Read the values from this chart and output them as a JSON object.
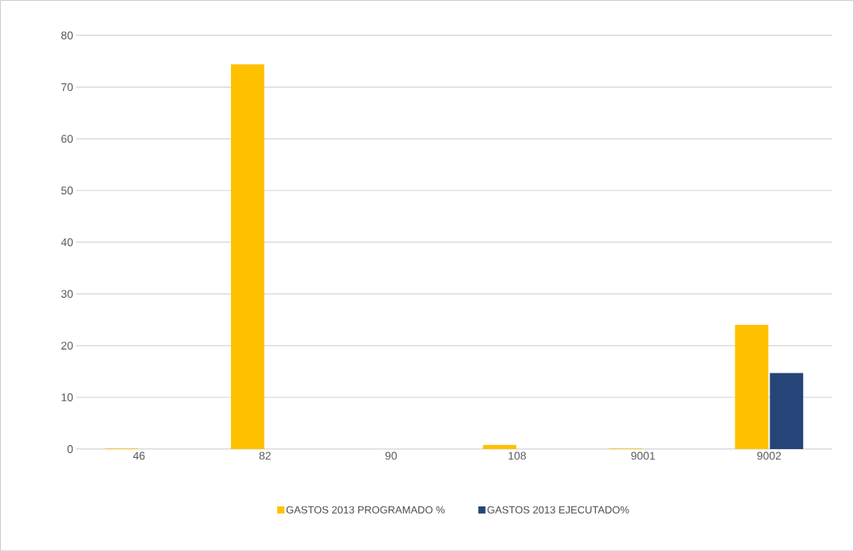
{
  "chart_data": {
    "type": "bar",
    "categories": [
      "46",
      "82",
      "90",
      "108",
      "9001",
      "9002"
    ],
    "series": [
      {
        "name": "GASTOS 2013 PROGRAMADO %",
        "color": "#ffc000",
        "values": [
          0.1,
          74.4,
          0,
          0.8,
          0.1,
          24.0
        ]
      },
      {
        "name": "GASTOS 2013 EJECUTADO%",
        "color": "#264478",
        "values": [
          0,
          0,
          0,
          0,
          0,
          14.7
        ]
      }
    ],
    "ylim": [
      0,
      80
    ],
    "yticks": [
      0,
      10,
      20,
      30,
      40,
      50,
      60,
      70,
      80
    ],
    "grid": "y",
    "legend": "bottom"
  }
}
